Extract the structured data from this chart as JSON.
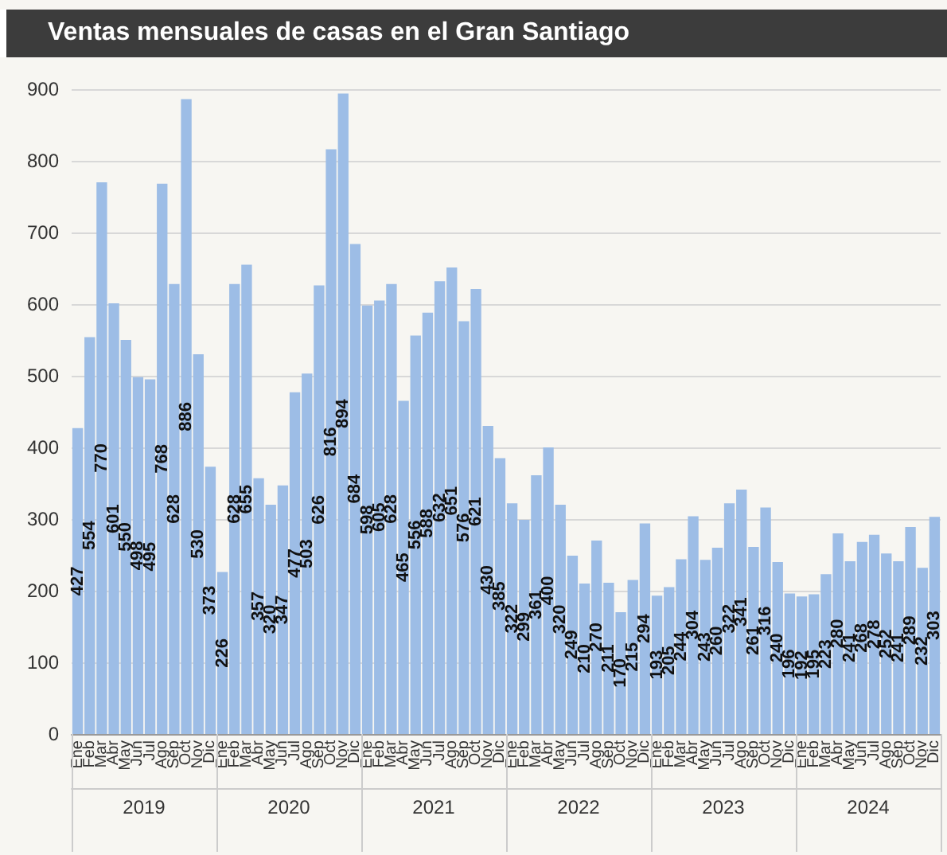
{
  "chart_data": {
    "type": "bar",
    "title": "Ventas mensuales de casas en el Gran Santiago",
    "categories": [
      "Ene",
      "Feb",
      "Mar",
      "Abr",
      "May",
      "Jun",
      "Jul",
      "Ago",
      "Sep",
      "Oct",
      "Nov",
      "Dic",
      "Ene",
      "Feb",
      "Mar",
      "Abr",
      "May",
      "Jun",
      "Jul",
      "Ago",
      "Sep",
      "Oct",
      "Nov",
      "Dic",
      "Ene",
      "Feb",
      "Mar",
      "Abr",
      "May",
      "Jun",
      "Jul",
      "Ago",
      "Sep",
      "Oct",
      "Nov",
      "Dic",
      "Ene",
      "Feb",
      "Mar",
      "Abr",
      "May",
      "Jun",
      "Jul",
      "Ago",
      "Sep",
      "Oct",
      "Nov",
      "Dic",
      "Ene",
      "Feb",
      "Mar",
      "Abr",
      "May",
      "Jun",
      "Jul",
      "Ago",
      "Sep",
      "Oct",
      "Nov",
      "Dic",
      "Ene",
      "Feb",
      "Mar",
      "Abr",
      "May",
      "Jun",
      "Jul",
      "Ago",
      "Sep",
      "Oct",
      "Nov",
      "Dic"
    ],
    "values": [
      427,
      554,
      770,
      601,
      550,
      498,
      495,
      768,
      628,
      886,
      530,
      373,
      226,
      628,
      655,
      357,
      320,
      347,
      477,
      503,
      626,
      816,
      894,
      684,
      598,
      605,
      628,
      465,
      556,
      588,
      632,
      651,
      576,
      621,
      430,
      385,
      322,
      299,
      361,
      400,
      320,
      249,
      210,
      270,
      211,
      170,
      215,
      294,
      193,
      205,
      244,
      304,
      243,
      260,
      322,
      341,
      261,
      316,
      240,
      196,
      192,
      195,
      223,
      280,
      241,
      268,
      278,
      252,
      241,
      289,
      232,
      303
    ],
    "color": "#9dbde6",
    "annotations": [
      "2019",
      "2020",
      "2021",
      "2022",
      "2023",
      "2024"
    ],
    "ylim": [
      0,
      900
    ],
    "yticks": [
      0,
      100,
      200,
      300,
      400,
      500,
      600,
      700,
      800,
      900
    ],
    "grid": "y",
    "data_labels": true
  }
}
